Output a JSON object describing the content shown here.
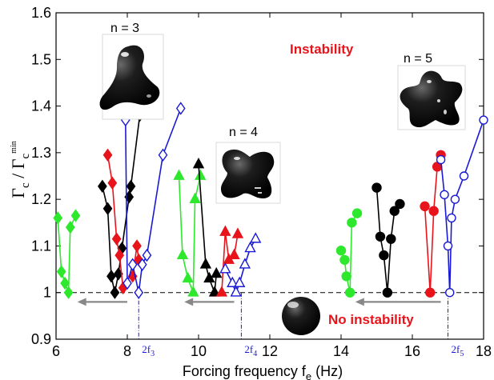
{
  "chart_data": {
    "type": "scatter",
    "title": "",
    "xlabel": "Forcing frequency f",
    "xlabel_sub": "e",
    "xlabel_unit": " (Hz)",
    "ylabel_main": "Γ",
    "ylabel_sub": "c",
    "ylabel_sep": " / Γ",
    "ylabel_sub2": "c",
    "ylabel_sup2": "min",
    "xlim": [
      6,
      18
    ],
    "ylim": [
      0.9,
      1.6
    ],
    "xticks": [
      "6",
      "8",
      "10",
      "12",
      "14",
      "16",
      "18"
    ],
    "yticks": [
      "0.9",
      "1",
      "1.1",
      "1.2",
      "1.3",
      "1.4",
      "1.5",
      "1.6"
    ],
    "grid": false,
    "reference_line_y": 1,
    "annotations": {
      "n3": "n = 3",
      "n4": "n = 4",
      "n5": "n = 5",
      "instability": "Instability",
      "no_instability": "No instability"
    },
    "freq_marks": [
      {
        "x": 8.32,
        "label": "2f",
        "sub": "3"
      },
      {
        "x": 11.2,
        "label": "2f",
        "sub": "4"
      },
      {
        "x": 17.0,
        "label": "2f",
        "sub": "5"
      }
    ],
    "arrows": [
      {
        "from_x": 8.0,
        "to_x": 6.6,
        "y": 0.98
      },
      {
        "from_x": 11.0,
        "to_x": 9.6,
        "y": 0.98
      },
      {
        "from_x": 16.8,
        "to_x": 14.4,
        "y": 0.98
      }
    ],
    "colors": {
      "green": "#2ee82e",
      "red": "#e8141b",
      "black": "#000000",
      "blue": "#1a1ad6",
      "gray": "#888888"
    },
    "series": [
      {
        "group": "n3",
        "color": "green",
        "marker": "diamond",
        "filled": true,
        "points": [
          [
            6.05,
            1.16
          ],
          [
            6.15,
            1.045
          ],
          [
            6.25,
            1.02
          ],
          [
            6.35,
            1.0
          ],
          [
            6.4,
            1.14
          ],
          [
            6.55,
            1.165
          ]
        ]
      },
      {
        "group": "n3",
        "color": "black",
        "marker": "diamond",
        "filled": true,
        "points": [
          [
            7.3,
            1.228
          ],
          [
            7.45,
            1.18
          ],
          [
            7.55,
            1.035
          ],
          [
            7.65,
            1.0
          ],
          [
            7.75,
            1.04
          ],
          [
            7.85,
            1.095
          ],
          [
            8.05,
            1.205
          ],
          [
            8.1,
            1.228
          ],
          [
            8.35,
            1.38
          ]
        ]
      },
      {
        "group": "n3",
        "color": "red",
        "marker": "diamond",
        "filled": true,
        "points": [
          [
            7.45,
            1.295
          ],
          [
            7.58,
            1.235
          ],
          [
            7.7,
            1.115
          ],
          [
            7.78,
            1.08
          ],
          [
            7.88,
            1.01
          ]
        ]
      },
      {
        "group": "n3",
        "color": "red",
        "marker": "diamond",
        "filled": true,
        "points": [
          [
            8.15,
            1.035
          ],
          [
            8.27,
            1.1
          ],
          [
            8.32,
            1.07
          ]
        ]
      },
      {
        "group": "n3",
        "color": "blue",
        "marker": "diamond",
        "filled": false,
        "points": [
          [
            7.95,
            1.37
          ],
          [
            8.0,
            1.02
          ],
          [
            8.15,
            1.06
          ],
          [
            8.32,
            1.0
          ],
          [
            8.42,
            1.06
          ],
          [
            8.55,
            1.08
          ],
          [
            9.0,
            1.295
          ],
          [
            9.5,
            1.395
          ]
        ]
      },
      {
        "group": "n4",
        "color": "green",
        "marker": "triangle",
        "filled": true,
        "points": [
          [
            9.45,
            1.25
          ],
          [
            9.55,
            1.08
          ],
          [
            9.7,
            1.03
          ],
          [
            9.85,
            1.0
          ],
          [
            9.9,
            1.2
          ],
          [
            10.05,
            1.25
          ]
        ]
      },
      {
        "group": "n4",
        "color": "black",
        "marker": "triangle",
        "filled": true,
        "points": [
          [
            10.0,
            1.275
          ],
          [
            10.2,
            1.06
          ],
          [
            10.3,
            1.03
          ],
          [
            10.45,
            1.0
          ],
          [
            10.5,
            1.04
          ]
        ]
      },
      {
        "group": "n4",
        "color": "red",
        "marker": "triangle",
        "filled": true,
        "points": [
          [
            10.65,
            1.0
          ],
          [
            10.75,
            1.13
          ],
          [
            10.85,
            1.07
          ],
          [
            11.0,
            1.08
          ],
          [
            11.1,
            1.125
          ]
        ]
      },
      {
        "group": "n4",
        "color": "blue",
        "marker": "triangle",
        "filled": false,
        "points": [
          [
            10.75,
            1.05
          ],
          [
            10.95,
            1.02
          ],
          [
            11.05,
            1.0
          ],
          [
            11.15,
            1.02
          ],
          [
            11.3,
            1.06
          ],
          [
            11.45,
            1.095
          ],
          [
            11.6,
            1.115
          ]
        ]
      },
      {
        "group": "n5",
        "color": "green",
        "marker": "circle",
        "filled": true,
        "points": [
          [
            14.0,
            1.09
          ],
          [
            14.1,
            1.07
          ],
          [
            14.15,
            1.035
          ],
          [
            14.25,
            1.0
          ],
          [
            14.3,
            1.15
          ],
          [
            14.45,
            1.17
          ]
        ]
      },
      {
        "group": "n5",
        "color": "black",
        "marker": "circle",
        "filled": true,
        "points": [
          [
            15.0,
            1.225
          ],
          [
            15.1,
            1.12
          ],
          [
            15.2,
            1.08
          ],
          [
            15.3,
            1.0
          ],
          [
            15.4,
            1.115
          ],
          [
            15.5,
            1.175
          ],
          [
            15.65,
            1.19
          ]
        ]
      },
      {
        "group": "n5",
        "color": "red",
        "marker": "circle",
        "filled": true,
        "points": [
          [
            16.35,
            1.185
          ],
          [
            16.5,
            1.0
          ],
          [
            16.6,
            1.175
          ],
          [
            16.7,
            1.27
          ],
          [
            16.8,
            1.295
          ]
        ]
      },
      {
        "group": "n5",
        "color": "blue",
        "marker": "circle",
        "filled": false,
        "points": [
          [
            16.8,
            1.285
          ],
          [
            16.9,
            1.21
          ],
          [
            17.0,
            1.1
          ],
          [
            17.05,
            1.0
          ],
          [
            17.1,
            1.16
          ],
          [
            17.2,
            1.2
          ],
          [
            17.45,
            1.25
          ],
          [
            18.0,
            1.37
          ]
        ]
      }
    ]
  }
}
